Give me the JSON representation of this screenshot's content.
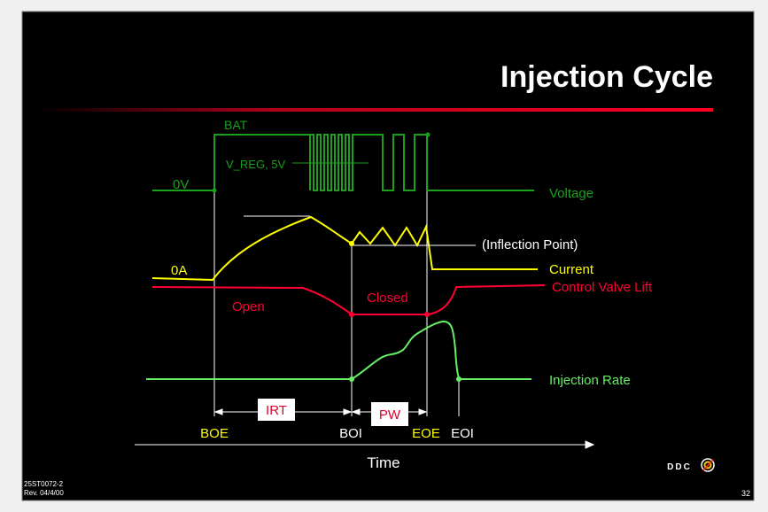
{
  "slide": {
    "title": "Injection Cycle",
    "doc_id": "25ST0072-2",
    "revision": "Rev. 04/4/00",
    "page_number": "32",
    "logo_text": "DDC"
  },
  "signals": {
    "voltage_label": "Voltage",
    "bat_label": "BAT",
    "vreg_label": "V_REG, 5V",
    "zero_volt_label": "0V",
    "current_label": "Current",
    "zero_amp_label": "0A",
    "inflection_label": "(Inflection Point)",
    "valve_label": "Control Valve Lift",
    "open_label": "Open",
    "closed_label": "Closed",
    "rate_label": "Injection Rate"
  },
  "timeline": {
    "irt_label": "IRT",
    "pw_label": "PW",
    "boe": "BOE",
    "boi": "BOI",
    "eoe": "EOE",
    "eoi": "EOI",
    "axis_label": "Time"
  },
  "colors": {
    "voltage": "#1aa01a",
    "current": "#ffff00",
    "valve": "#ff0033",
    "rate": "#66ee66",
    "title": "#ffffff",
    "label_box_text": "#e0002a"
  }
}
